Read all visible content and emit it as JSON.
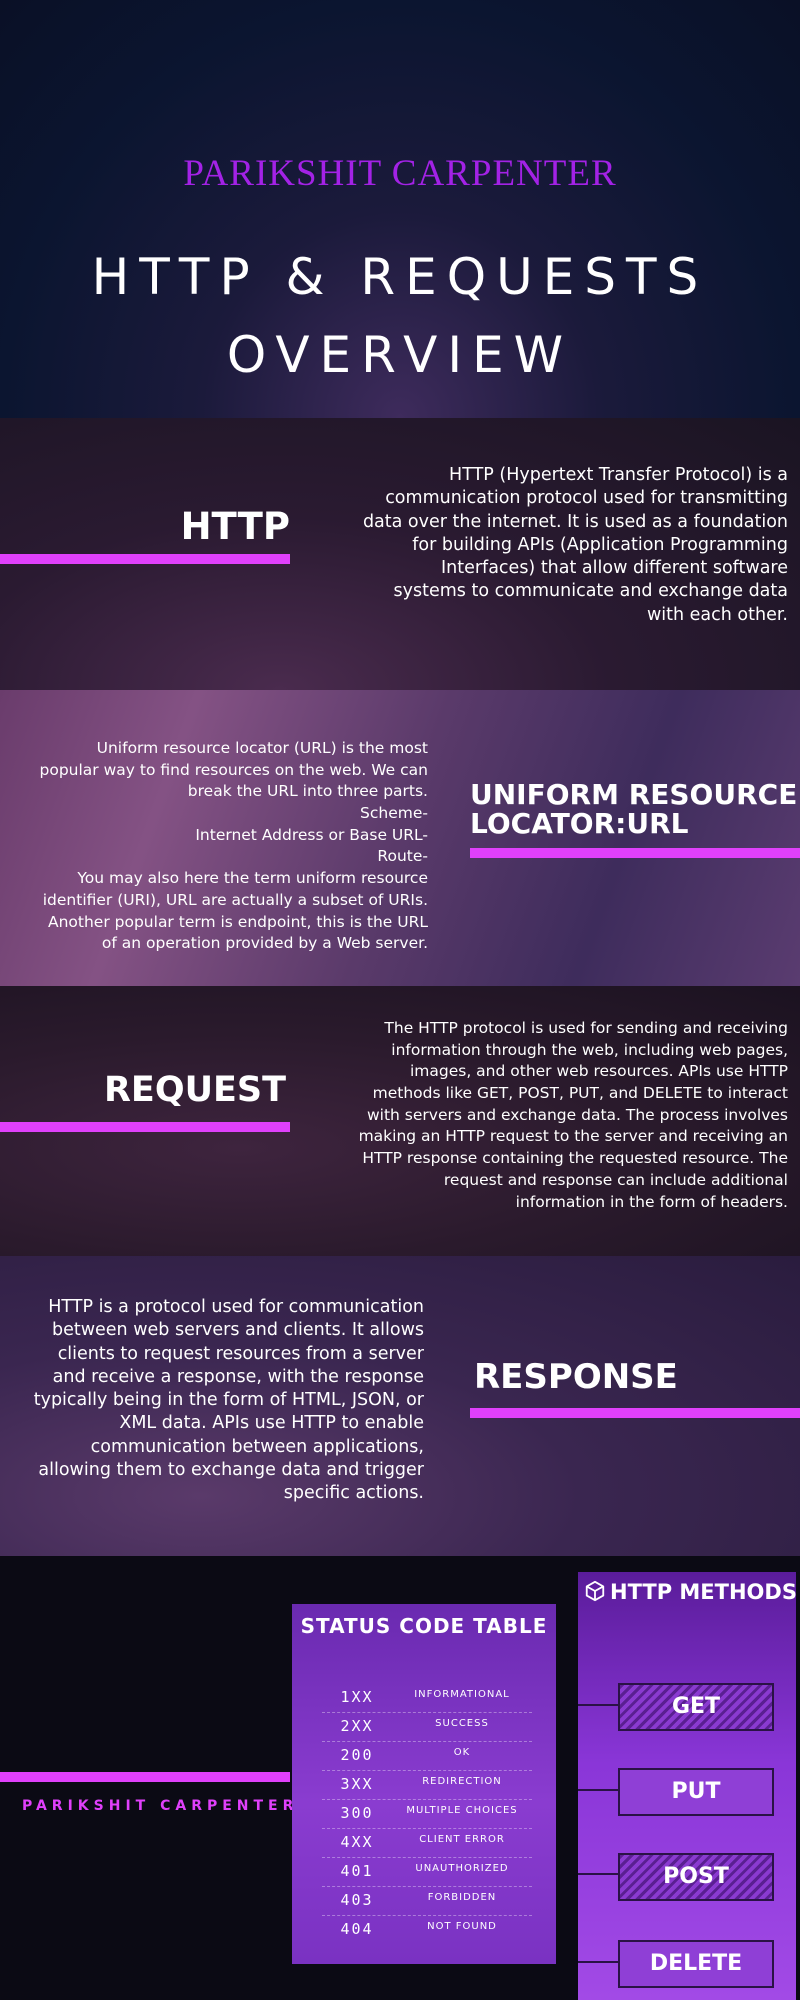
{
  "hero": {
    "author": "PARIKSHIT CARPENTER",
    "title_line1": "HTTP & REQUESTS",
    "title_line2": "OVERVIEW"
  },
  "sections": {
    "http": {
      "heading": "HTTP",
      "text": "HTTP (Hypertext Transfer Protocol) is a\ncommunication protocol used for transmitting\ndata over the internet. It is used as a foundation\nfor building APIs (Application Programming\nInterfaces) that allow different software\nsystems to communicate and exchange data\nwith each other."
    },
    "url": {
      "heading_line1": "UNIFORM RESOURCE",
      "heading_line2": "LOCATOR:URL",
      "text": "Uniform resource locator (URL) is the most\npopular way to find resources on the web.  We can\nbreak the URL into three parts.\nScheme-\nInternet Address or Base URL-\nRoute-\nYou may also here the term uniform resource\nidentifier (URI), URL are actually a subset of URIs.\nAnother popular term is endpoint, this is the URL\nof an operation provided by a Web server."
    },
    "request": {
      "heading": "REQUEST",
      "text": "The HTTP protocol is used for sending and receiving\ninformation through the web, including web pages,\nimages, and other web resources. APIs use HTTP\nmethods like GET, POST, PUT, and DELETE to interact\nwith servers and exchange data. The process involves\nmaking an HTTP request to the server and receiving an\nHTTP response containing the requested resource. The\nrequest and response can include additional\ninformation in the form of headers."
    },
    "response": {
      "heading": "RESPONSE",
      "text": "HTTP is a protocol used for communication\nbetween web servers and clients. It allows\nclients to request resources from a server\nand receive a response, with the response\ntypically being in the form of HTML, JSON, or\nXML data. APIs use HTTP to enable\ncommunication between applications,\nallowing them to exchange data and trigger\nspecific actions."
    }
  },
  "status_table": {
    "title": "STATUS CODE TABLE",
    "rows": [
      {
        "code": "1XX",
        "desc": "INFORMATIONAL"
      },
      {
        "code": "2XX",
        "desc": "SUCCESS"
      },
      {
        "code": "200",
        "desc": "OK"
      },
      {
        "code": "3XX",
        "desc": "REDIRECTION"
      },
      {
        "code": "300",
        "desc": "MULTIPLE CHOICES"
      },
      {
        "code": "4XX",
        "desc": "CLIENT ERROR"
      },
      {
        "code": "401",
        "desc": "UNAUTHORIZED"
      },
      {
        "code": "403",
        "desc": "FORBIDDEN"
      },
      {
        "code": "404",
        "desc": "NOT FOUND"
      }
    ]
  },
  "methods": {
    "title": "HTTP METHODS",
    "icon": "box-icon",
    "items": [
      "GET",
      "PUT",
      "POST",
      "DELETE"
    ]
  },
  "footer": {
    "author": "PARIKSHIT CARPENTER"
  },
  "colors": {
    "accent": "#e040fb",
    "author_purple": "#a322e6",
    "panel_purple": "#8a36d8"
  }
}
